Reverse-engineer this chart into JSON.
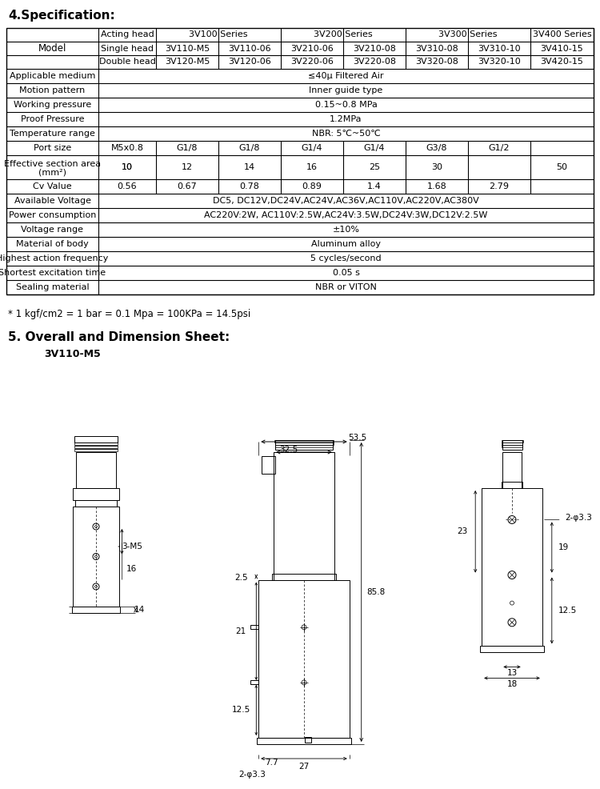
{
  "title_section": "4.Specification:",
  "section5_title": "5. Overall and Dimension Sheet:",
  "model_label": "3V110-M5",
  "footnote": "* 1 kgf/cm2 = 1 bar = 0.1 Mpa = 100KPa = 14.5psi",
  "table": {
    "header_row1": [
      "",
      "Acting head",
      "3V100 Series",
      "",
      "3V200 Series",
      "",
      "3V300 Series",
      "",
      "3V400 Series"
    ],
    "header_row2": [
      "Model",
      "Single head",
      "3V110-M5",
      "3V110-06",
      "3V210-06",
      "3V210-08",
      "3V310-08",
      "3V310-10",
      "3V410-15"
    ],
    "header_row3": [
      "",
      "Double head",
      "3V120-M5",
      "3V120-06",
      "3V220-06",
      "3V220-08",
      "3V320-08",
      "3V320-10",
      "3V420-15"
    ],
    "rows": [
      [
        "Applicable medium",
        "≤40μ Filtered Air"
      ],
      [
        "Motion pattern",
        "Inner guide type"
      ],
      [
        "Working pressure",
        "0.15~0.8 MPa"
      ],
      [
        "Proof Pressure",
        "1.2MPa"
      ],
      [
        "Temperature range",
        "NBR: 5℃~50℃"
      ],
      [
        "Port size",
        "M5x0.8",
        "G1/8",
        "G1/8",
        "G1/4",
        "G1/4",
        "G3/8",
        "G1/2"
      ],
      [
        "Effective section area\n(mm²)",
        "10",
        "12",
        "14",
        "16",
        "25",
        "30",
        "50"
      ],
      [
        "Cv Value",
        "0.56",
        "0.67",
        "0.78",
        "0.89",
        "1.4",
        "1.68",
        "2.79"
      ],
      [
        "Available Voltage",
        "DC5, DC12V,DC24V,AC24V,AC36V,AC110V,AC220V,AC380V"
      ],
      [
        "Power consumption",
        "AC220V:2W, AC110V:2.5W,AC24V:3.5W,DC24V:3W,DC12V:2.5W"
      ],
      [
        "Voltage range",
        "±10%"
      ],
      [
        "Material of body",
        "Aluminum alloy"
      ],
      [
        "Highest action frequency",
        "5 cycles/second"
      ],
      [
        "Shortest excitation time",
        "0.05 s"
      ],
      [
        "Sealing material",
        "NBR or VITON"
      ]
    ]
  },
  "bg_color": "#ffffff",
  "text_color": "#000000",
  "table_line_color": "#000000"
}
